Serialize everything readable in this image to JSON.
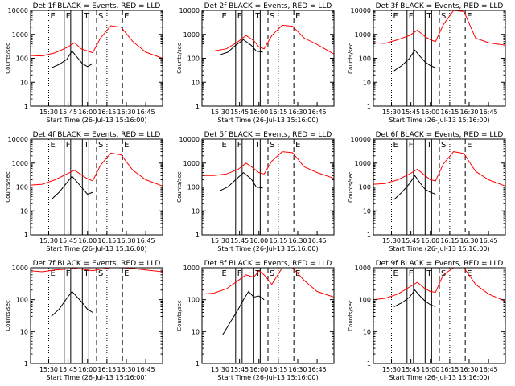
{
  "figure": {
    "xlabel": "Start Time (26-Jul-13 15:16:00)",
    "ylabel": "Counts/sec",
    "x_ticks": [
      "15:30",
      "15:45",
      "16:00",
      "16:15",
      "16:30",
      "16:45"
    ],
    "y_ticks": [
      "1",
      "10",
      "100",
      "1000",
      "10000"
    ],
    "colors": {
      "events": "#000000",
      "lld": "#ff0000"
    }
  },
  "chart_data": [
    {
      "type": "line",
      "title": "Det 1f BLACK = Events, RED = LLD",
      "ylim": [
        1,
        10000
      ],
      "y_scale": "log",
      "xlim": [
        "15:16",
        "16:58"
      ],
      "markers": {
        "dotted": [
          "15:30",
          "16:15"
        ],
        "solid": [
          "15:42",
          "15:47",
          "15:56",
          "16:01"
        ],
        "dashed": [
          "16:07",
          "16:27"
        ],
        "labels": [
          "E",
          "F",
          "T",
          "S",
          "E"
        ]
      },
      "series": [
        {
          "name": "Events",
          "x": [
            "15:32",
            "15:38",
            "15:44",
            "15:48",
            "15:52",
            "15:56",
            "16:00",
            "16:04"
          ],
          "y": [
            40,
            55,
            90,
            200,
            110,
            60,
            45,
            60
          ]
        },
        {
          "name": "LLD",
          "x": [
            "15:16",
            "15:25",
            "15:35",
            "15:44",
            "15:50",
            "15:55",
            "16:00",
            "16:04",
            "16:10",
            "16:18",
            "16:26",
            "16:35",
            "16:45",
            "16:58"
          ],
          "y": [
            130,
            125,
            170,
            280,
            450,
            250,
            200,
            170,
            700,
            2300,
            2000,
            500,
            180,
            100
          ]
        }
      ]
    },
    {
      "type": "line",
      "title": "Det 2f BLACK = Events, RED = LLD",
      "ylim": [
        1,
        10000
      ],
      "y_scale": "log",
      "xlim": [
        "15:16",
        "16:58"
      ],
      "markers": {
        "dotted": [
          "15:30",
          "16:15"
        ],
        "solid": [
          "15:42",
          "15:47",
          "15:56",
          "16:01"
        ],
        "dashed": [
          "16:07",
          "16:27"
        ],
        "labels": [
          "E",
          "F",
          "T",
          "S",
          "E"
        ]
      },
      "series": [
        {
          "name": "Events",
          "x": [
            "15:30",
            "15:36",
            "15:42",
            "15:48",
            "15:54",
            "15:58",
            "16:03"
          ],
          "y": [
            140,
            180,
            350,
            600,
            350,
            200,
            180
          ]
        },
        {
          "name": "LLD",
          "x": [
            "15:16",
            "15:25",
            "15:35",
            "15:44",
            "15:50",
            "15:56",
            "16:00",
            "16:04",
            "16:10",
            "16:18",
            "16:26",
            "16:35",
            "16:45",
            "16:58"
          ],
          "y": [
            200,
            200,
            250,
            500,
            900,
            550,
            300,
            250,
            900,
            2400,
            2200,
            700,
            380,
            150
          ]
        }
      ]
    },
    {
      "type": "line",
      "title": "Det 3f BLACK = Events, RED = LLD",
      "ylim": [
        1,
        10000
      ],
      "y_scale": "log",
      "xlim": [
        "15:16",
        "16:58"
      ],
      "markers": {
        "dotted": [
          "15:30",
          "16:15"
        ],
        "solid": [
          "15:42",
          "15:47",
          "15:56",
          "16:01"
        ],
        "dashed": [
          "16:07",
          "16:27"
        ],
        "labels": [
          "E",
          "F",
          "T",
          "S",
          "E"
        ]
      },
      "series": [
        {
          "name": "Events",
          "x": [
            "15:32",
            "15:38",
            "15:44",
            "15:48",
            "15:52",
            "15:56",
            "16:00",
            "16:04"
          ],
          "y": [
            30,
            50,
            100,
            220,
            120,
            70,
            50,
            40
          ]
        },
        {
          "name": "LLD",
          "x": [
            "15:16",
            "15:25",
            "15:35",
            "15:44",
            "15:50",
            "15:56",
            "16:00",
            "16:04",
            "16:10",
            "16:18",
            "16:26",
            "16:35",
            "16:45",
            "16:58"
          ],
          "y": [
            450,
            420,
            600,
            900,
            1500,
            800,
            600,
            500,
            2500,
            10000,
            9000,
            700,
            450,
            350
          ]
        }
      ]
    },
    {
      "type": "line",
      "title": "Det 4f BLACK = Events, RED = LLD",
      "ylim": [
        1,
        10000
      ],
      "y_scale": "log",
      "xlim": [
        "15:16",
        "16:58"
      ],
      "markers": {
        "dotted": [
          "15:30",
          "16:15"
        ],
        "solid": [
          "15:42",
          "15:47",
          "15:56",
          "16:01"
        ],
        "dashed": [
          "16:07",
          "16:27"
        ],
        "labels": [
          "E",
          "F",
          "T",
          "S",
          "E"
        ]
      },
      "series": [
        {
          "name": "Events",
          "x": [
            "15:32",
            "15:38",
            "15:44",
            "15:48",
            "15:52",
            "15:56",
            "16:00",
            "16:04"
          ],
          "y": [
            30,
            60,
            150,
            280,
            160,
            90,
            50,
            60
          ]
        },
        {
          "name": "LLD",
          "x": [
            "15:16",
            "15:25",
            "15:35",
            "15:44",
            "15:50",
            "15:56",
            "16:00",
            "16:04",
            "16:10",
            "16:18",
            "16:26",
            "16:35",
            "16:45",
            "16:58"
          ],
          "y": [
            120,
            130,
            200,
            350,
            500,
            300,
            220,
            180,
            800,
            2600,
            2200,
            500,
            200,
            110
          ]
        }
      ]
    },
    {
      "type": "line",
      "title": "Det 5f BLACK = Events, RED = LLD",
      "ylim": [
        1,
        10000
      ],
      "y_scale": "log",
      "xlim": [
        "15:16",
        "16:58"
      ],
      "markers": {
        "dotted": [
          "15:30",
          "16:15"
        ],
        "solid": [
          "15:42",
          "15:47",
          "15:56",
          "16:01"
        ],
        "dashed": [
          "16:07",
          "16:27"
        ],
        "labels": [
          "E",
          "F",
          "T",
          "S",
          "E"
        ]
      },
      "series": [
        {
          "name": "Events",
          "x": [
            "15:30",
            "15:36",
            "15:42",
            "15:48",
            "15:54",
            "15:58",
            "16:03"
          ],
          "y": [
            70,
            100,
            200,
            400,
            220,
            100,
            90
          ]
        },
        {
          "name": "LLD",
          "x": [
            "15:16",
            "15:25",
            "15:35",
            "15:44",
            "15:50",
            "15:56",
            "16:00",
            "16:04",
            "16:10",
            "16:18",
            "16:26",
            "16:35",
            "16:45",
            "16:58"
          ],
          "y": [
            300,
            300,
            350,
            550,
            1000,
            600,
            400,
            350,
            1200,
            3000,
            2700,
            700,
            400,
            230
          ]
        }
      ]
    },
    {
      "type": "line",
      "title": "Det 6f BLACK = Events, RED = LLD",
      "ylim": [
        1,
        10000
      ],
      "y_scale": "log",
      "xlim": [
        "15:16",
        "16:58"
      ],
      "markers": {
        "dotted": [
          "15:30",
          "16:15"
        ],
        "solid": [
          "15:42",
          "15:47",
          "15:56",
          "16:01"
        ],
        "dashed": [
          "16:07",
          "16:27"
        ],
        "labels": [
          "E",
          "F",
          "T",
          "S",
          "E"
        ]
      },
      "series": [
        {
          "name": "Events",
          "x": [
            "15:32",
            "15:38",
            "15:44",
            "15:48",
            "15:52",
            "15:56",
            "16:00",
            "16:04"
          ],
          "y": [
            30,
            60,
            140,
            300,
            150,
            80,
            60,
            50
          ]
        },
        {
          "name": "LLD",
          "x": [
            "15:16",
            "15:25",
            "15:35",
            "15:44",
            "15:50",
            "15:56",
            "16:00",
            "16:04",
            "16:10",
            "16:18",
            "16:26",
            "16:35",
            "16:45",
            "16:58"
          ],
          "y": [
            130,
            140,
            200,
            350,
            550,
            300,
            200,
            180,
            900,
            3000,
            2500,
            450,
            200,
            110
          ]
        }
      ]
    },
    {
      "type": "line",
      "title": "Det 7f BLACK = Events, RED = LLD",
      "ylim": [
        1,
        1000
      ],
      "y_scale": "log",
      "xlim": [
        "15:16",
        "16:58"
      ],
      "markers": {
        "dotted": [
          "15:30",
          "16:15"
        ],
        "solid": [
          "15:42",
          "15:47",
          "15:56",
          "16:01"
        ],
        "dashed": [
          "16:07",
          "16:27"
        ],
        "labels": [
          "E",
          "F",
          "T",
          "S",
          "E"
        ]
      },
      "series": [
        {
          "name": "Events",
          "x": [
            "15:32",
            "15:38",
            "15:44",
            "15:48",
            "15:52",
            "15:56",
            "16:00",
            "16:04"
          ],
          "y": [
            30,
            50,
            110,
            180,
            120,
            80,
            50,
            40
          ]
        },
        {
          "name": "LLD",
          "x": [
            "15:16",
            "15:25",
            "15:35",
            "15:44",
            "15:50",
            "15:56",
            "16:00",
            "16:04",
            "16:10",
            "16:18",
            "16:26",
            "16:35",
            "16:45",
            "16:58"
          ],
          "y": [
            800,
            750,
            850,
            900,
            950,
            900,
            850,
            800,
            900,
            1000,
            1000,
            950,
            850,
            750
          ]
        }
      ]
    },
    {
      "type": "line",
      "title": "Det 8f BLACK = Events, RED = LLD",
      "ylim": [
        1,
        1000
      ],
      "y_scale": "log",
      "xlim": [
        "15:16",
        "16:58"
      ],
      "markers": {
        "dotted": [
          "15:30",
          "16:15"
        ],
        "solid": [
          "15:42",
          "15:47",
          "15:56",
          "16:01"
        ],
        "dashed": [
          "16:07",
          "16:27"
        ],
        "labels": [
          "E",
          "F",
          "T",
          "S",
          "E"
        ]
      },
      "series": [
        {
          "name": "Events",
          "x": [
            "15:32",
            "15:38",
            "15:44",
            "15:48",
            "15:52",
            "15:56",
            "16:00",
            "16:04"
          ],
          "y": [
            8,
            20,
            50,
            100,
            180,
            120,
            130,
            100
          ]
        },
        {
          "name": "LLD",
          "x": [
            "15:16",
            "15:25",
            "15:35",
            "15:44",
            "15:50",
            "15:56",
            "16:00",
            "16:04",
            "16:10",
            "16:18",
            "16:26",
            "16:35",
            "16:45",
            "16:58"
          ],
          "y": [
            150,
            160,
            220,
            400,
            600,
            500,
            800,
            600,
            300,
            1000,
            1000,
            400,
            180,
            120
          ]
        }
      ]
    },
    {
      "type": "line",
      "title": "Det 9f BLACK = Events, RED = LLD",
      "ylim": [
        1,
        1000
      ],
      "y_scale": "log",
      "xlim": [
        "15:16",
        "16:58"
      ],
      "markers": {
        "dotted": [
          "15:30",
          "16:15"
        ],
        "solid": [
          "15:42",
          "15:47",
          "15:56",
          "16:01"
        ],
        "dashed": [
          "16:07",
          "16:27"
        ],
        "labels": [
          "E",
          "F",
          "T",
          "S",
          "E"
        ]
      },
      "series": [
        {
          "name": "Events",
          "x": [
            "15:32",
            "15:38",
            "15:44",
            "15:48",
            "15:52",
            "15:56",
            "16:00",
            "16:04"
          ],
          "y": [
            60,
            80,
            120,
            200,
            130,
            90,
            70,
            60
          ]
        },
        {
          "name": "LLD",
          "x": [
            "15:16",
            "15:25",
            "15:35",
            "15:44",
            "15:50",
            "15:56",
            "16:00",
            "16:04",
            "16:10",
            "16:18",
            "16:26",
            "16:35",
            "16:45",
            "16:58"
          ],
          "y": [
            100,
            110,
            150,
            250,
            350,
            220,
            180,
            170,
            600,
            1000,
            1000,
            300,
            150,
            90
          ]
        }
      ]
    }
  ]
}
